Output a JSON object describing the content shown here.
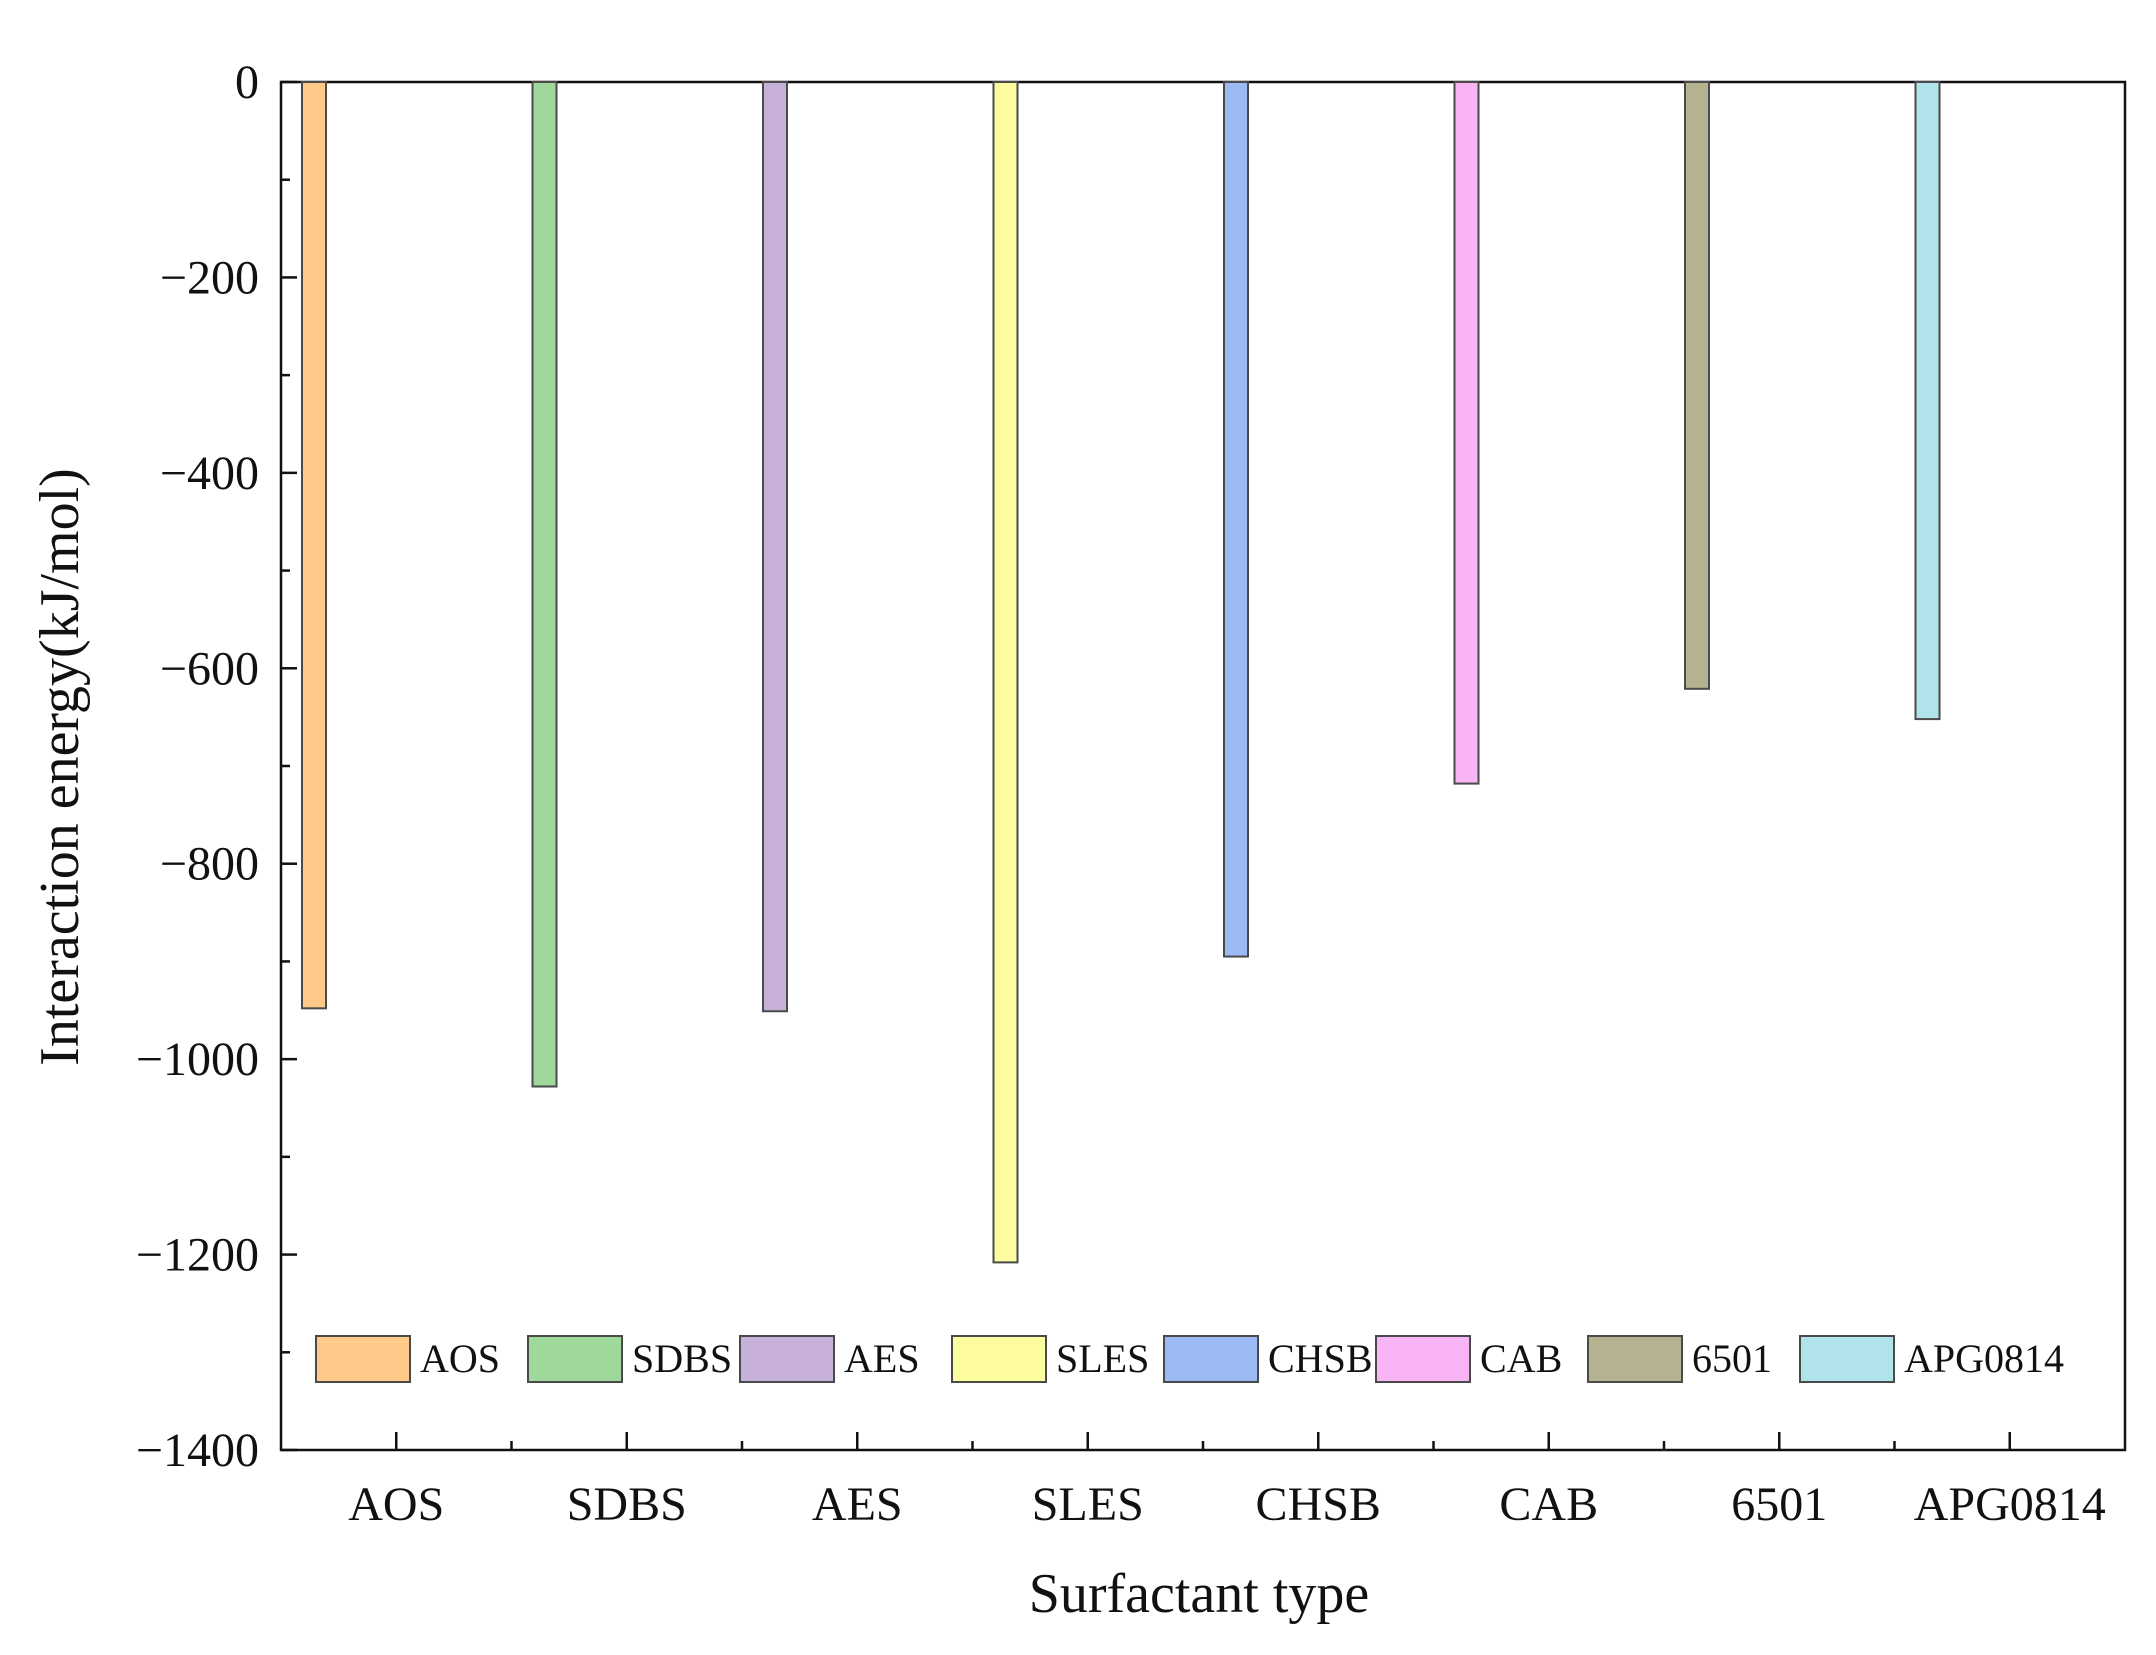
{
  "chart_data": {
    "type": "bar",
    "title": "",
    "xlabel": "Surfactant type",
    "ylabel": "Interaction energy(kJ/mol)",
    "categories": [
      "AOS",
      "SDBS",
      "AES",
      "SLES",
      "CHSB",
      "CAB",
      "6501",
      "APG0814"
    ],
    "series": [
      {
        "name": "AOS",
        "category": "AOS",
        "value": -948,
        "color": "#FFC98A"
      },
      {
        "name": "SDBS",
        "category": "SDBS",
        "value": -1028,
        "color": "#9ED89A"
      },
      {
        "name": "AES",
        "category": "AES",
        "value": -951,
        "color": "#C7B1D8"
      },
      {
        "name": "SLES",
        "category": "SLES",
        "value": -1208,
        "color": "#FCFC9E"
      },
      {
        "name": "CHSB",
        "category": "CHSB",
        "value": -895,
        "color": "#9BB9F2"
      },
      {
        "name": "CAB",
        "category": "CAB",
        "value": -718,
        "color": "#F9B4F6"
      },
      {
        "name": "6501",
        "category": "6501",
        "value": -621,
        "color": "#B4B28F"
      },
      {
        "name": "APG0814",
        "category": "APG0814",
        "value": -652,
        "color": "#B1E4EA"
      }
    ],
    "ylim": [
      -1400,
      0
    ],
    "yticks": [
      0,
      -200,
      -400,
      -600,
      -800,
      -1000,
      -1200,
      -1400
    ],
    "ytick_labels": [
      "0",
      "−200",
      "−400",
      "−600",
      "−800",
      "−1000",
      "−1200",
      "−1400"
    ],
    "grid": false,
    "legend": {
      "position": "bottom-left",
      "entries": [
        "AOS",
        "SDBS",
        "AES",
        "SLES",
        "CHSB",
        "CAB",
        "6501",
        "APG0814"
      ]
    }
  }
}
